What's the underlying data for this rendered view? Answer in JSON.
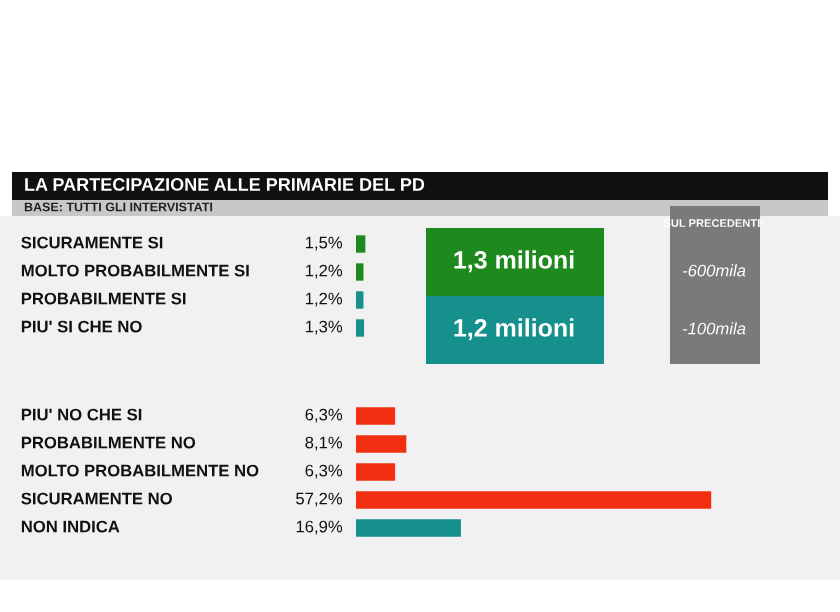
{
  "chart_data": [
    {
      "type": "bar",
      "orientation": "horizontal",
      "title": "LA PARTECIPAZIONE ALLE PRIMARIE DEL PD",
      "subtitle": "BASE: TUTTI GLI INTERVISTATI",
      "categories": [
        "SICURAMENTE SI",
        "MOLTO PROBABILMENTE SI",
        "PROBABILMENTE SI",
        "PIU' SI CHE NO"
      ],
      "values": [
        1.5,
        1.2,
        1.2,
        1.3
      ],
      "value_labels": [
        "1,5%",
        "1,2%",
        "1,2%",
        "1,3%"
      ],
      "colors": [
        "#1e8a1e",
        "#1e8a1e",
        "#15908c",
        "#15908c"
      ],
      "annotations": [
        "1,3 milioni",
        "1,2 milioni",
        "SUL PRECEDENTE",
        "-600mila",
        "-100mila"
      ]
    },
    {
      "type": "bar",
      "orientation": "horizontal",
      "categories": [
        "PIU' NO CHE SI",
        "PROBABILMENTE NO",
        "MOLTO PROBABILMENTE NO",
        "SICURAMENTE NO",
        "NON INDICA"
      ],
      "values": [
        6.3,
        8.1,
        6.3,
        57.2,
        16.9
      ],
      "value_labels": [
        "6,3%",
        "8,1%",
        "6,3%",
        "57,2%",
        "16,9%"
      ],
      "colors": [
        "#f03010",
        "#f03010",
        "#f03010",
        "#f03010",
        "#15908c"
      ]
    }
  ]
}
